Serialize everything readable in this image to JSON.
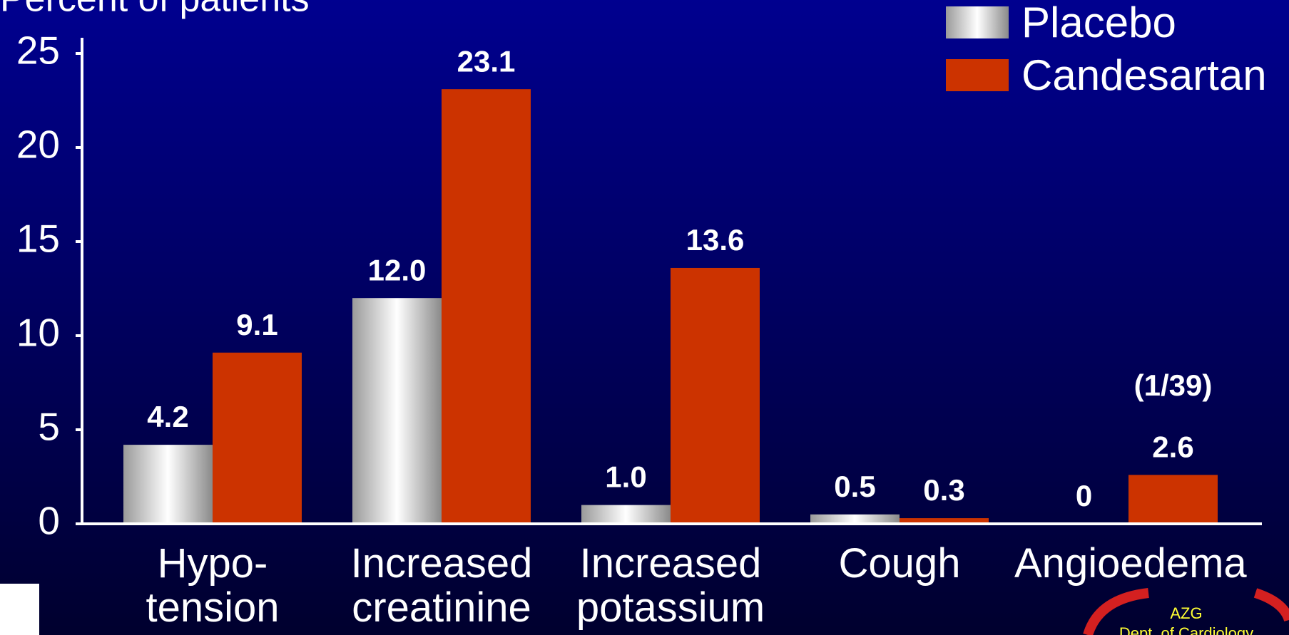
{
  "chart_data": {
    "type": "bar",
    "y_label": "Percent of patients",
    "categories": [
      "Hypo-\ntension",
      "Increased\ncreatinine",
      "Increased\npotassium",
      "Cough",
      "Angioedema"
    ],
    "series": [
      {
        "name": "Placebo",
        "color": "#a0a0a0",
        "gradient": true,
        "values": [
          4.2,
          12.0,
          1.0,
          0.5,
          0
        ],
        "value_labels": [
          "4.2",
          "12.0",
          "1.0",
          "0.5",
          "0"
        ]
      },
      {
        "name": "Candesartan",
        "color": "#cc3300",
        "values": [
          9.1,
          23.1,
          13.6,
          0.3,
          2.6
        ],
        "value_labels": [
          "9.1",
          "23.1",
          "13.6",
          "0.3",
          "2.6"
        ]
      }
    ],
    "annotations": [
      "(1/39)"
    ],
    "ylim": [
      0,
      25
    ],
    "yticks": [
      0,
      5,
      10,
      15,
      20,
      25
    ],
    "legend": "top-right",
    "logo": {
      "title": "AZG",
      "subtitle": "Dept. of Cardiology"
    }
  }
}
